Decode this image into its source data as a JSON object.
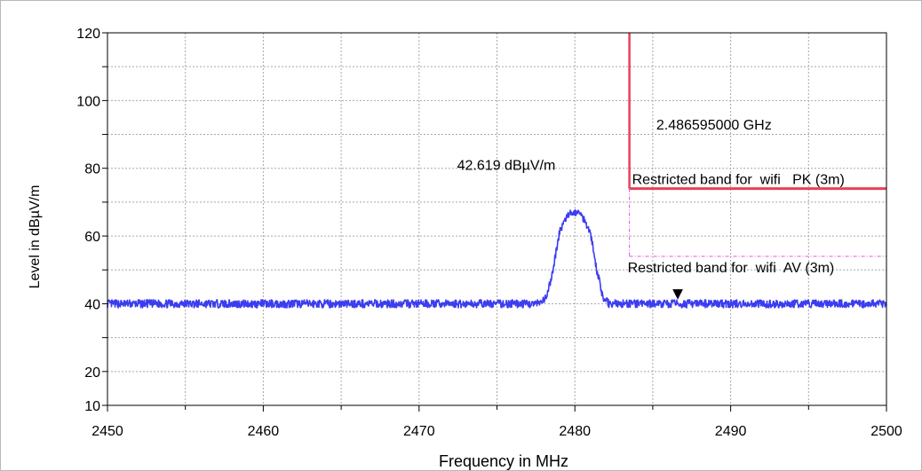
{
  "chart_data": {
    "type": "line",
    "xlabel": "Frequency in MHz",
    "ylabel": "Level in dBµV/m",
    "xlim": [
      2450,
      2500
    ],
    "ylim": [
      10,
      120
    ],
    "x_ticks": [
      "2450",
      "2460",
      "2470",
      "2480",
      "2490",
      "2500"
    ],
    "y_ticks": [
      "10",
      "20",
      "40",
      "60",
      "80",
      "100",
      "120"
    ],
    "grid": true,
    "series": [
      {
        "color": "#3c3cf0",
        "x": [
          2450,
          2455,
          2460,
          2465,
          2470,
          2475,
          2477.8,
          2478.2,
          2478.6,
          2479.0,
          2479.4,
          2479.8,
          2480.2,
          2480.6,
          2481.0,
          2481.4,
          2481.8,
          2482.2,
          2485,
          2490,
          2495,
          2500
        ],
        "y": [
          40,
          40,
          40,
          40,
          40,
          40,
          40,
          42,
          50,
          61,
          65,
          67,
          67,
          65,
          61,
          50,
          42,
          40,
          40,
          40,
          40,
          40
        ]
      }
    ],
    "limit_lines": [
      {
        "label": "Restricted band for  wifi   PK (3m)",
        "color": "#e8405a",
        "x_start": 2483.5,
        "y": 74
      },
      {
        "label": "Restricted band for  wifi  AV (3m)",
        "color": "#e055e0",
        "x_start": 2483.5,
        "y": 54
      }
    ],
    "band_edge": {
      "x": 2483.5,
      "color": "#e8405a"
    },
    "marker": {
      "x": 2486.6,
      "y": 42.619,
      "symbol": "▼"
    },
    "annotations": [
      {
        "text": "42.619 dBµV/m",
        "x": 2479.0,
        "y": 79.5
      },
      {
        "text": "2.486595000 GHz",
        "x": 2484.2,
        "y": 91.5
      }
    ]
  }
}
